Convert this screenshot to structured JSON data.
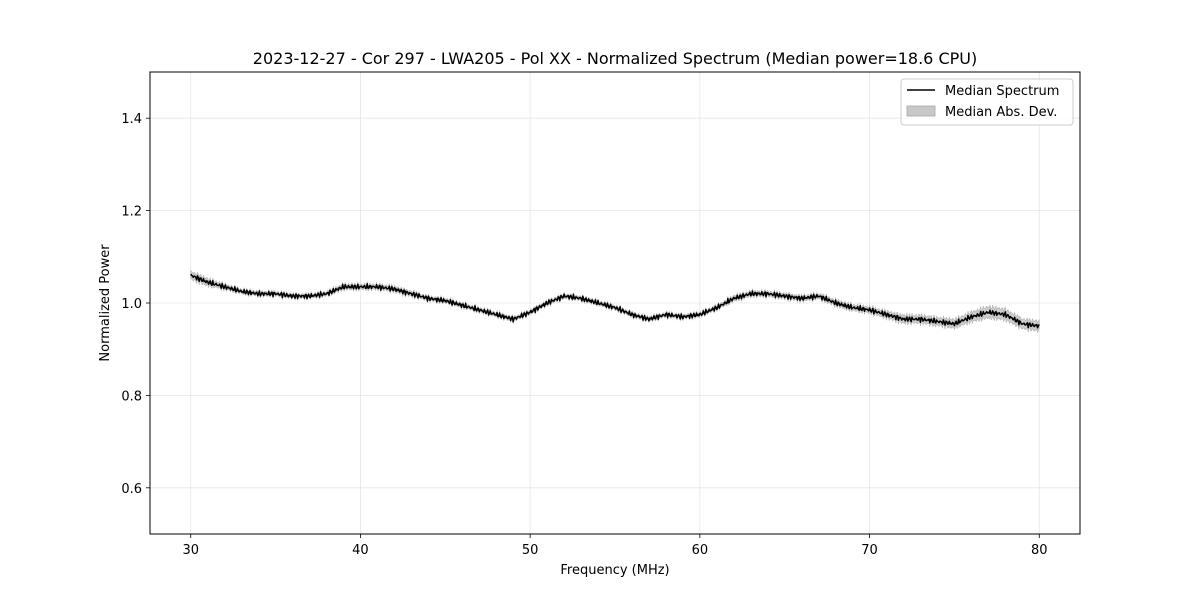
{
  "chart_data": {
    "type": "line",
    "title": "2023-12-27 - Cor 297 - LWA205 - Pol XX - Normalized Spectrum (Median power=18.6 CPU)",
    "xlabel": "Frequency (MHz)",
    "ylabel": "Normalized Power",
    "xlim": [
      27.6,
      82.4
    ],
    "ylim": [
      0.5,
      1.5
    ],
    "xticks": [
      30,
      40,
      50,
      60,
      70,
      80
    ],
    "yticks": [
      0.6,
      0.8,
      1.0,
      1.2,
      1.4
    ],
    "xtick_labels": [
      "30",
      "40",
      "50",
      "60",
      "70",
      "80"
    ],
    "ytick_labels": [
      "0.6",
      "0.8",
      "1.0",
      "1.2",
      "1.4"
    ],
    "grid": true,
    "legend_position": "top-right",
    "series": [
      {
        "name": "Median Spectrum",
        "kind": "line",
        "color": "#000000",
        "x": [
          30,
          31,
          32,
          33,
          34,
          35,
          36,
          37,
          38,
          39,
          40,
          41,
          42,
          43,
          44,
          45,
          46,
          47,
          48,
          49,
          50,
          51,
          52,
          53,
          54,
          55,
          56,
          57,
          58,
          59,
          60,
          61,
          62,
          63,
          64,
          65,
          66,
          67,
          68,
          69,
          70,
          71,
          72,
          73,
          74,
          75,
          76,
          77,
          78,
          79,
          80
        ],
        "y": [
          1.06,
          1.045,
          1.035,
          1.025,
          1.02,
          1.02,
          1.015,
          1.015,
          1.02,
          1.035,
          1.035,
          1.035,
          1.03,
          1.02,
          1.01,
          1.005,
          0.995,
          0.985,
          0.975,
          0.965,
          0.98,
          1.0,
          1.015,
          1.01,
          1.0,
          0.99,
          0.975,
          0.965,
          0.975,
          0.97,
          0.975,
          0.99,
          1.01,
          1.02,
          1.02,
          1.015,
          1.01,
          1.015,
          1.0,
          0.99,
          0.985,
          0.975,
          0.965,
          0.965,
          0.96,
          0.955,
          0.97,
          0.98,
          0.975,
          0.955,
          0.95
        ]
      },
      {
        "name": "Median Abs. Dev.",
        "kind": "band",
        "color": "#c8c8c8",
        "x": [
          30,
          31,
          32,
          33,
          34,
          35,
          36,
          37,
          38,
          39,
          40,
          41,
          42,
          43,
          44,
          45,
          46,
          47,
          48,
          49,
          50,
          51,
          52,
          53,
          54,
          55,
          56,
          57,
          58,
          59,
          60,
          61,
          62,
          63,
          64,
          65,
          66,
          67,
          68,
          69,
          70,
          71,
          72,
          73,
          74,
          75,
          76,
          77,
          78,
          79,
          80
        ],
        "spread": [
          0.008,
          0.007,
          0.005,
          0.004,
          0.004,
          0.004,
          0.004,
          0.004,
          0.004,
          0.005,
          0.005,
          0.005,
          0.005,
          0.005,
          0.004,
          0.004,
          0.004,
          0.004,
          0.004,
          0.004,
          0.004,
          0.004,
          0.004,
          0.004,
          0.004,
          0.004,
          0.004,
          0.004,
          0.004,
          0.004,
          0.004,
          0.004,
          0.005,
          0.005,
          0.005,
          0.005,
          0.005,
          0.005,
          0.006,
          0.006,
          0.006,
          0.007,
          0.008,
          0.008,
          0.008,
          0.009,
          0.01,
          0.012,
          0.011,
          0.01,
          0.01
        ]
      }
    ]
  }
}
